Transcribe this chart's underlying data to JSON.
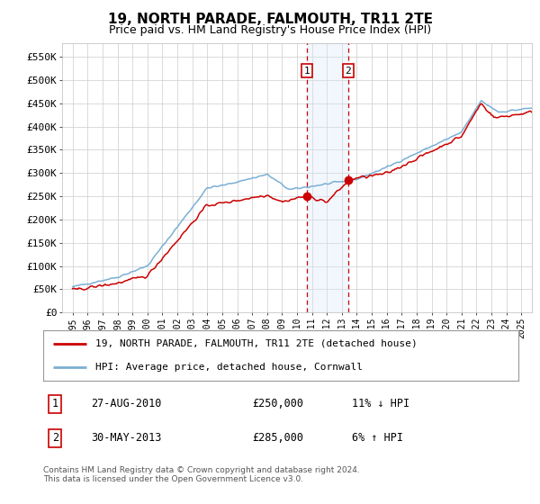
{
  "title": "19, NORTH PARADE, FALMOUTH, TR11 2TE",
  "subtitle": "Price paid vs. HM Land Registry's House Price Index (HPI)",
  "ylim": [
    0,
    580000
  ],
  "yticks": [
    0,
    50000,
    100000,
    150000,
    200000,
    250000,
    300000,
    350000,
    400000,
    450000,
    500000,
    550000
  ],
  "ytick_labels": [
    "£0",
    "£50K",
    "£100K",
    "£150K",
    "£200K",
    "£250K",
    "£300K",
    "£350K",
    "£400K",
    "£450K",
    "£500K",
    "£550K"
  ],
  "hpi_color": "#7bafd4",
  "price_color": "#cc0000",
  "marker_color": "#cc0000",
  "vline_color": "#cc0000",
  "shade_color": "#d8eaf7",
  "transaction1": {
    "date": "27-AUG-2010",
    "price": 250000,
    "hpi_diff": "11% ↓ HPI",
    "x": 2010.65
  },
  "transaction2": {
    "date": "30-MAY-2013",
    "price": 285000,
    "hpi_diff": "6% ↑ HPI",
    "x": 2013.41
  },
  "legend_entries": [
    "19, NORTH PARADE, FALMOUTH, TR11 2TE (detached house)",
    "HPI: Average price, detached house, Cornwall"
  ],
  "footnote": "Contains HM Land Registry data © Crown copyright and database right 2024.\nThis data is licensed under the Open Government Licence v3.0.",
  "background_color": "#ffffff",
  "grid_color": "#cccccc"
}
